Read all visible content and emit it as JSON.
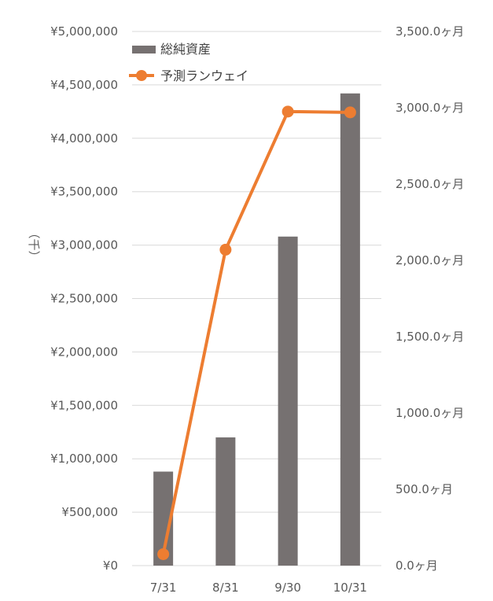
{
  "chart_data": {
    "type": "bar",
    "categories": [
      "7/31",
      "8/31",
      "9/30",
      "10/31"
    ],
    "series": [
      {
        "name": "総純資産",
        "type": "bar",
        "axis": "left",
        "color": "#767171",
        "values": [
          880000,
          1200000,
          3080000,
          4420000
        ]
      },
      {
        "name": "予測ランウェイ",
        "type": "line",
        "axis": "right",
        "color": "#ED7D31",
        "values": [
          75,
          2070,
          2975,
          2970
        ]
      }
    ],
    "left_axis": {
      "unit_label": "（千）",
      "ylim": [
        0,
        5000000
      ],
      "ticks": [
        "¥0",
        "¥500,000",
        "¥1,000,000",
        "¥1,500,000",
        "¥2,000,000",
        "¥2,500,000",
        "¥3,000,000",
        "¥3,500,000",
        "¥4,000,000",
        "¥4,500,000",
        "¥5,000,000"
      ]
    },
    "right_axis": {
      "ylim": [
        0,
        3500
      ],
      "ticks": [
        "0.0ヶ月",
        "500.0ヶ月",
        "1,000.0ヶ月",
        "1,500.0ヶ月",
        "2,000.0ヶ月",
        "2,500.0ヶ月",
        "3,000.0ヶ月",
        "3,500.0ヶ月"
      ]
    },
    "legend_position": "top-left",
    "grid": true,
    "gridline_color": "#D9D9D9"
  }
}
